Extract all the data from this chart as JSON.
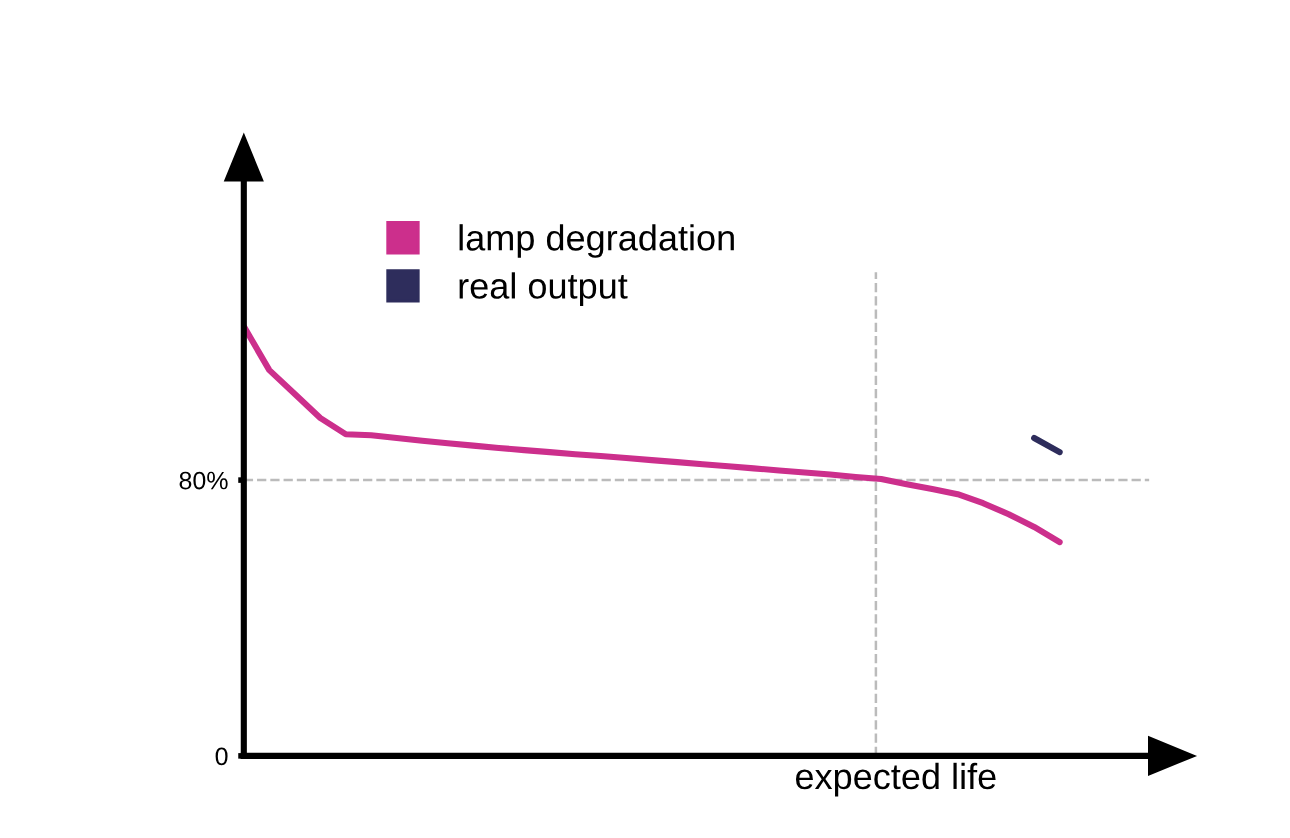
{
  "chart_data": {
    "type": "line",
    "xlabel": "expected life",
    "categories": [
      null,
      null,
      null,
      null,
      null,
      null,
      null,
      null,
      null,
      null,
      null,
      null,
      null,
      null,
      null,
      null,
      null,
      null,
      null,
      null,
      null,
      null,
      null,
      null,
      null,
      null,
      null,
      null,
      null,
      null,
      null,
      null,
      null
    ],
    "series": [
      {
        "name": "lamp degradation",
        "color": "#cc2f8c",
        "values": [
          124.6,
          111.9,
          105.0,
          98.0,
          93.3,
          93.0,
          92.2,
          91.4,
          90.7,
          90.0,
          89.3,
          88.7,
          88.1,
          87.5,
          87.0,
          86.4,
          85.8,
          85.2,
          84.6,
          84.0,
          83.4,
          82.8,
          82.2,
          81.6,
          80.9,
          80.3,
          78.8,
          77.4,
          75.9,
          73.3,
          70.1,
          66.4,
          62.0
        ]
      },
      {
        "name": "real output",
        "color": "#2e2d5c",
        "values": [
          null,
          null,
          null,
          null,
          null,
          null,
          null,
          null,
          null,
          null,
          null,
          null,
          null,
          null,
          null,
          null,
          null,
          null,
          null,
          null,
          null,
          null,
          null,
          null,
          null,
          null,
          null,
          null,
          null,
          null,
          null,
          92.2,
          88.1
        ]
      }
    ],
    "ylim": [
      0,
      167
    ],
    "yticks": [
      0,
      {
        "value": 80,
        "label": "80%"
      }
    ],
    "ref_lines": [
      {
        "axis": "y",
        "value": 80,
        "color": "#bbbbbb",
        "line_style": "dashed"
      }
    ],
    "legend": "top left",
    "grid": false,
    "marker": "none",
    "line_style": "solid"
  }
}
